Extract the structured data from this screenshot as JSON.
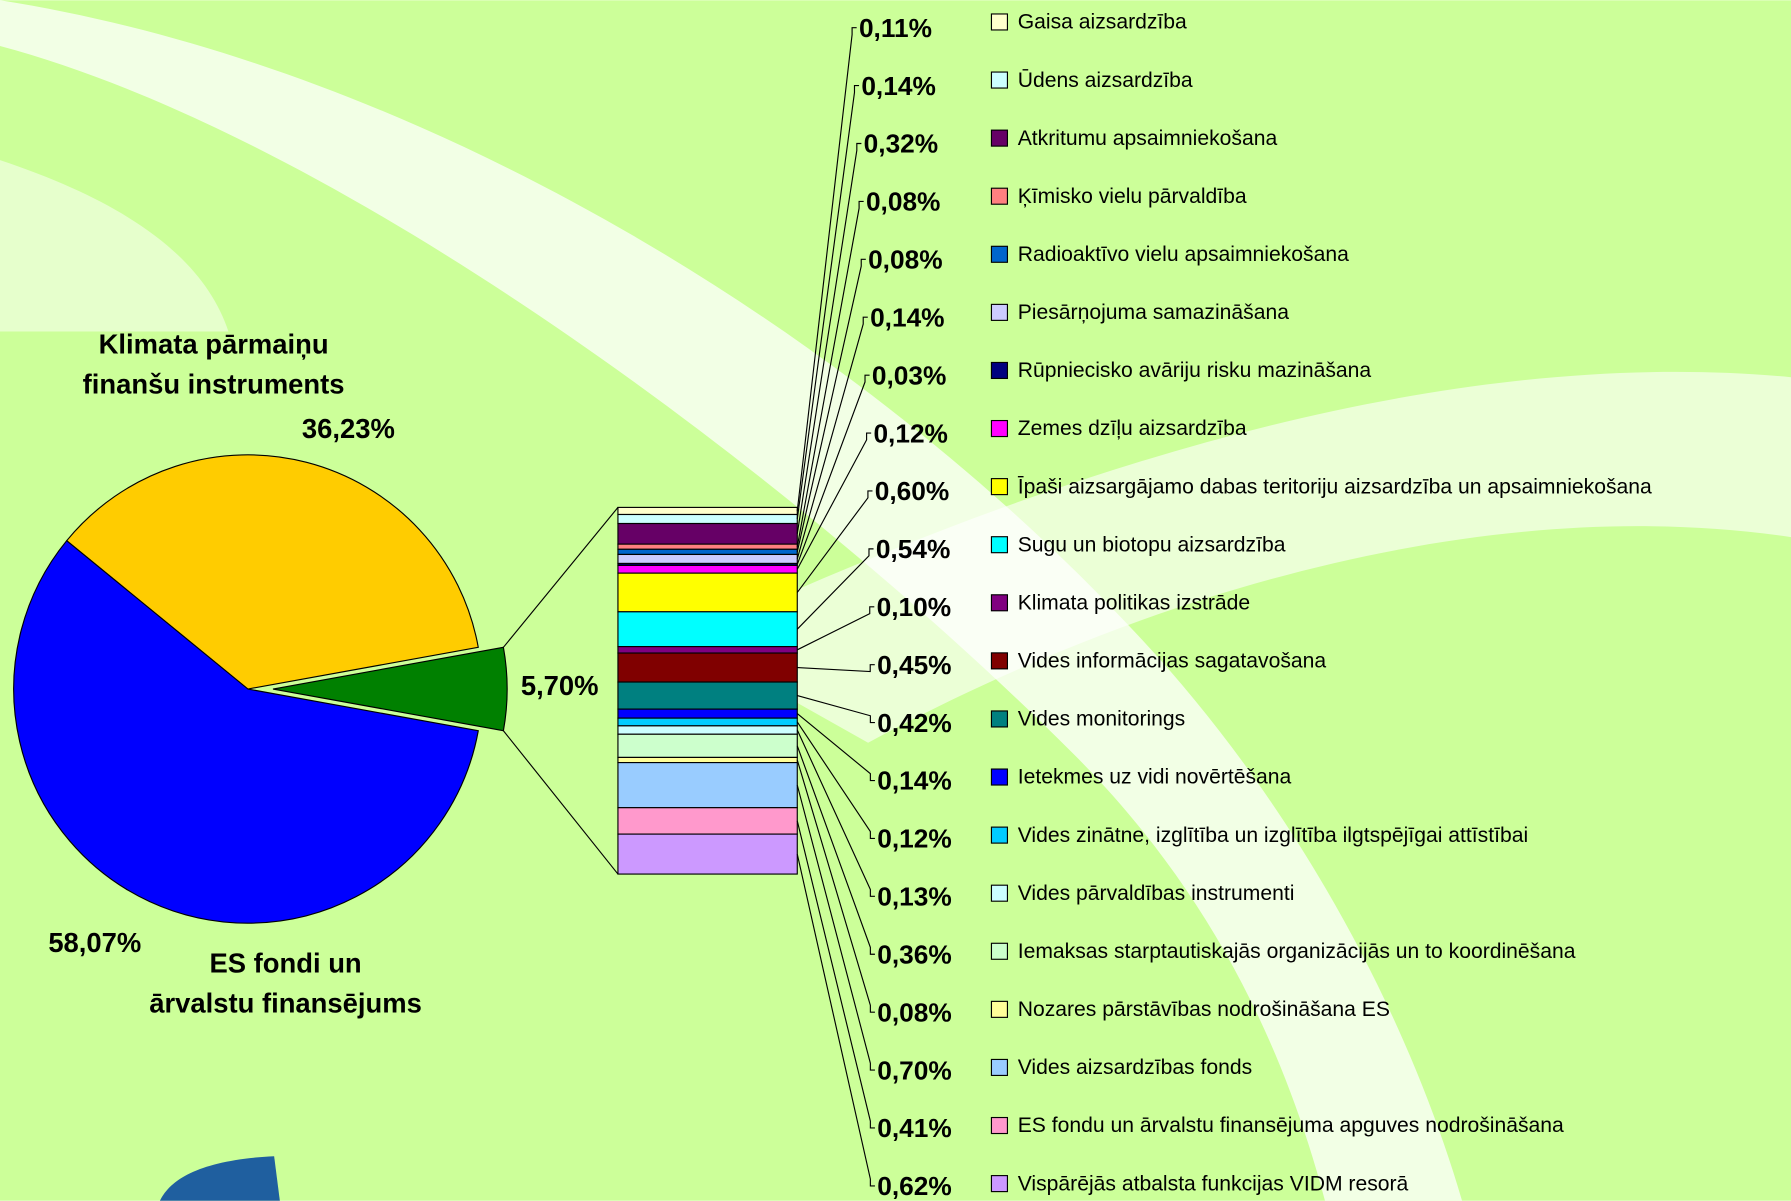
{
  "chart_data": [
    {
      "type": "pie",
      "categories": [
        [
          "Klimata pārmaiņu",
          "finanšu instruments"
        ],
        null,
        [
          "ES fondi un",
          "ārvalstu finansējums"
        ]
      ],
      "values": [
        36.23,
        5.7,
        58.07
      ],
      "value_labels": [
        "36,23%",
        "5,70%",
        "58,07%"
      ],
      "colors": [
        "#ffcc00",
        "#008000",
        "#0000ff"
      ]
    },
    {
      "type": "stacked-bar",
      "categories": [
        "Gaisa aizsardzība",
        "Ūdens aizsardzība",
        "Atkritumu apsaimniekošana",
        "Ķīmisko vielu pārvaldība",
        "Radioaktīvo vielu apsaimniekošana",
        "Piesārņojuma samazināšana",
        "Rūpniecisko avāriju risku mazināšana",
        "Zemes dzīļu aizsardzība",
        "Īpaši aizsargājamo dabas teritoriju aizsardzība un apsaimniekošana",
        "Sugu un biotopu aizsardzība",
        "Klimata politikas izstrāde",
        "Vides informācijas sagatavošana",
        "Vides monitorings",
        "Ietekmes uz vidi novērtēšana",
        "Vides zinātne, izglītība un izglītība ilgtspējīgai attīstībai",
        "Vides pārvaldības instrumenti",
        "Iemaksas starptautiskajās organizācijās un to koordinēšana",
        "Nozares pārstāvības nodrošināšana ES",
        "Vides aizsardzības fonds",
        "ES fondu un ārvalstu finansējuma apguves nodrošināšana",
        "Vispārējās atbalsta funkcijas VIDM resorā"
      ],
      "values": [
        0.11,
        0.14,
        0.32,
        0.08,
        0.08,
        0.14,
        0.03,
        0.12,
        0.6,
        0.54,
        0.1,
        0.45,
        0.42,
        0.14,
        0.12,
        0.13,
        0.36,
        0.08,
        0.7,
        0.41,
        0.62
      ],
      "value_labels": [
        "0,11%",
        "0,14%",
        "0,32%",
        "0,08%",
        "0,08%",
        "0,14%",
        "0,03%",
        "0,12%",
        "0,60%",
        "0,54%",
        "0,10%",
        "0,45%",
        "0,42%",
        "0,14%",
        "0,12%",
        "0,13%",
        "0,36%",
        "0,08%",
        "0,70%",
        "0,41%",
        "0,62%"
      ],
      "colors": [
        "#ffffcc",
        "#ccffff",
        "#660066",
        "#ff8080",
        "#0066cc",
        "#ccccff",
        "#000080",
        "#ff00ff",
        "#ffff00",
        "#00ffff",
        "#800080",
        "#800000",
        "#008080",
        "#0000ff",
        "#00ccff",
        "#ccffff",
        "#ccffcc",
        "#ffff99",
        "#99ccff",
        "#ff99cc",
        "#cc99ff"
      ]
    }
  ]
}
